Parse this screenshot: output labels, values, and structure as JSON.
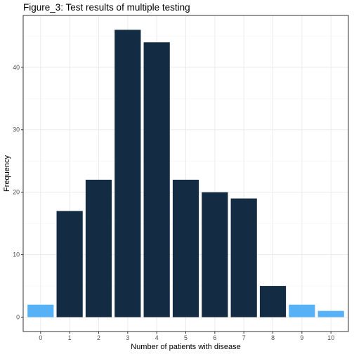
{
  "chart_data": {
    "type": "bar",
    "title": "Figure_3: Test results of multiple testing",
    "xlabel": "Number of patients with disease",
    "ylabel": "Frequency",
    "categories": [
      "0",
      "1",
      "2",
      "3",
      "4",
      "5",
      "6",
      "7",
      "8",
      "9",
      "10"
    ],
    "values": [
      2,
      17,
      22,
      46,
      44,
      22,
      20,
      19,
      5,
      2,
      1
    ],
    "bar_colors": [
      "#56B1F7",
      "#132B43",
      "#132B43",
      "#132B43",
      "#132B43",
      "#132B43",
      "#132B43",
      "#132B43",
      "#132B43",
      "#56B1F7",
      "#56B1F7"
    ],
    "y_ticks": [
      0,
      10,
      20,
      30,
      40
    ],
    "ylim": [
      -2.3,
      48.3
    ],
    "grid": true,
    "legend": "none",
    "colors": {
      "background": "#ffffff",
      "grid_major": "#ebebeb",
      "grid_minor": "#f5f5f5",
      "panel_border": "#333333"
    }
  }
}
